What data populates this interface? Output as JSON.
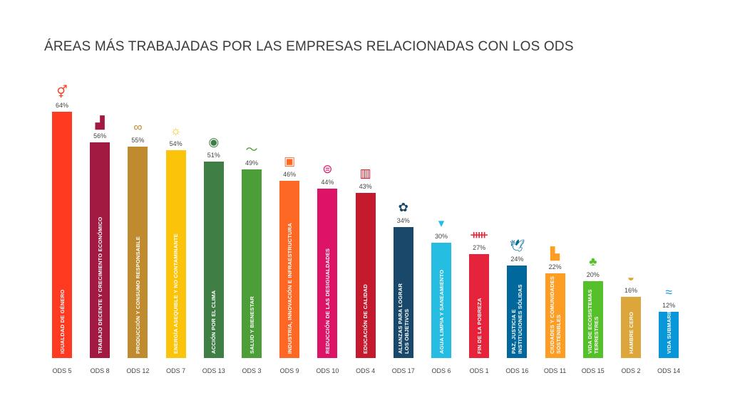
{
  "title": "ÁREAS MÁS TRABAJADAS POR LAS EMPRESAS RELACIONADAS CON LOS ODS",
  "chart_data": {
    "type": "bar",
    "title": "ÁREAS MÁS TRABAJADAS POR LAS EMPRESAS RELACIONADAS CON LOS ODS",
    "ylim": [
      0,
      64
    ],
    "grid": false,
    "categories": [
      "ODS 5",
      "ODS 8",
      "ODS 12",
      "ODS 7",
      "ODS 13",
      "ODS 3",
      "ODS 9",
      "ODS 10",
      "ODS 4",
      "ODS 17",
      "ODS 6",
      "ODS 1",
      "ODS 16",
      "ODS 11",
      "ODS 15",
      "ODS 2",
      "ODS 14"
    ],
    "values": [
      64,
      56,
      55,
      54,
      51,
      49,
      46,
      44,
      43,
      34,
      30,
      27,
      24,
      22,
      20,
      16,
      12
    ],
    "value_labels": [
      "64%",
      "56%",
      "55%",
      "54%",
      "51%",
      "49%",
      "46%",
      "44%",
      "43%",
      "34%",
      "30%",
      "27%",
      "24%",
      "22%",
      "20%",
      "16%",
      "12%"
    ],
    "bar_labels": [
      "IGUALDAD DE GÉNERO",
      "TRABAJO DECENTE Y CRECIMIENTO ECONÓMICO",
      "PRODUCCIÓN Y CONSUMO RESPONSABLE",
      "ENERGÍA ASEQUIBLE Y NO CONTAMINANTE",
      "ACCIÓN POR EL CLIMA",
      "SALUD Y BIENESTAR",
      "INDUSTRIA, INNOVACIÓN E INFRAESTRUCTURA",
      "REDUCCIÓN DE LAS DESIGUALDADES",
      "EDUCACIÓN DE CALIDAD",
      "ALIANZAS PARA LOGRAR\nLOS OBJETIVOS",
      "AGUA LIMPIA Y SANEAMIENTO",
      "FIN DE LA POBREZA",
      "PAZ, JUSTICIA E\nINSTITUCIONES SÓLIDAS",
      "CIUDADES Y COMUNIDADES\nSOSTENIBLES",
      "VIDA DE ECOSISTEMAS\nTERRESTRES",
      "HAMBRE CERO",
      "VIDA SUBMARINA"
    ],
    "colors": [
      "#FF3A21",
      "#A21942",
      "#BF8B2E",
      "#FCC30B",
      "#3F7E44",
      "#4C9F38",
      "#FD6925",
      "#DD1367",
      "#C5192D",
      "#19486A",
      "#26BDE2",
      "#E5243B",
      "#00689D",
      "#FD9D24",
      "#56C02B",
      "#DDA63A",
      "#0A97D9"
    ],
    "icons": [
      "gender-equality-icon",
      "growth-chart-icon",
      "infinity-icon",
      "sun-icon",
      "eye-globe-icon",
      "heartbeat-icon",
      "cubes-icon",
      "equality-icon",
      "book-icon",
      "flower-rings-icon",
      "water-drop-icon",
      "people-icon",
      "dove-gavel-icon",
      "city-icon",
      "tree-icon",
      "bowl-icon",
      "fish-icon"
    ]
  }
}
